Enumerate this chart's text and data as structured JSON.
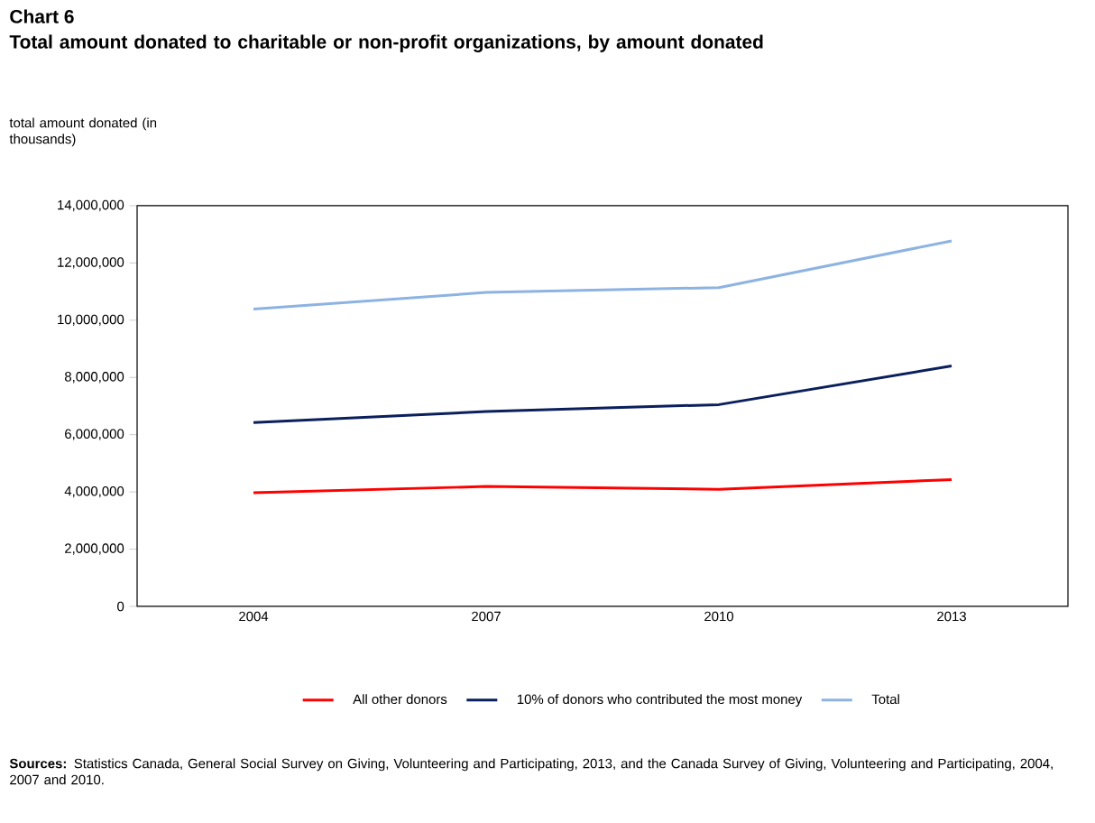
{
  "chart_data": {
    "type": "line",
    "title": "Chart 6",
    "subtitle": "Total amount donated to charitable or non-profit organizations, by amount donated",
    "ylabel": "total amount donated (in thousands)",
    "categories": [
      "2004",
      "2007",
      "2010",
      "2013"
    ],
    "series": [
      {
        "name": "All other donors",
        "color": "#ff0000",
        "values": [
          3970000,
          4190000,
          4090000,
          4430000
        ]
      },
      {
        "name": "10% of donors who contributed the most money",
        "color": "#0a1f5c",
        "values": [
          6420000,
          6810000,
          7050000,
          8400000
        ]
      },
      {
        "name": "Total",
        "color": "#8db3e2",
        "values": [
          10390000,
          10970000,
          11140000,
          12770000
        ]
      }
    ],
    "ylim": [
      0,
      14000000
    ],
    "yticks": [
      {
        "value": 0,
        "label": "0"
      },
      {
        "value": 2000000,
        "label": "2,000,000"
      },
      {
        "value": 4000000,
        "label": "4,000,000"
      },
      {
        "value": 6000000,
        "label": "6,000,000"
      },
      {
        "value": 8000000,
        "label": "8,000,000"
      },
      {
        "value": 10000000,
        "label": "10,000,000"
      },
      {
        "value": 12000000,
        "label": "12,000,000"
      },
      {
        "value": 14000000,
        "label": "14,000,000"
      }
    ],
    "legend": "bottom",
    "annotations": [
      "**Sources:** Statistics Canada, General Social Survey on Giving, Volunteering and Participating, 2013, and the Canada Survey of Giving, Volunteering and Participating, 2004, 2007 and 2010."
    ]
  }
}
